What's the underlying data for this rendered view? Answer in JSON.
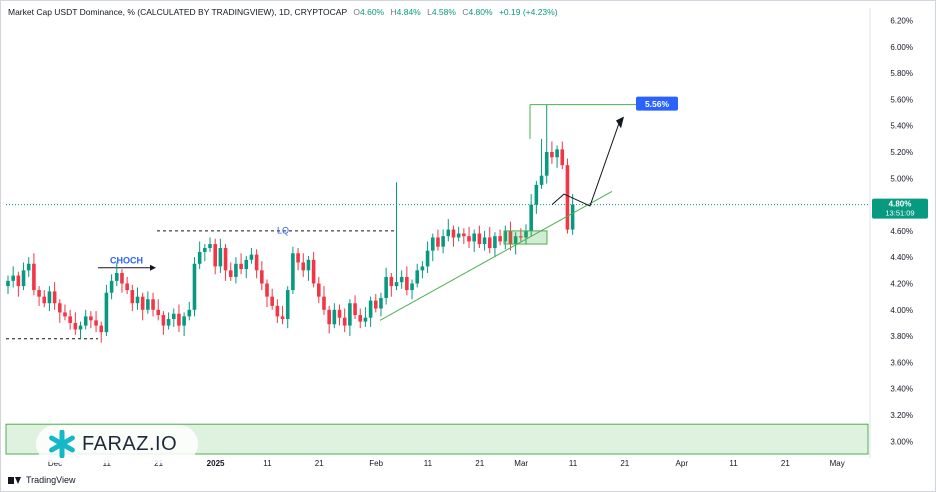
{
  "header": {
    "title": "Market Cap USDT Dominance, % (CALCULATED BY TRADINGVIEW), 1D, CRYPTOCAP",
    "open_label": "O",
    "open": "4.60%",
    "high_label": "H",
    "high": "4.84%",
    "low_label": "L",
    "low": "4.58%",
    "close_label": "C",
    "close": "4.80%",
    "change": "+0.19 (+4.23%)"
  },
  "price_tag": {
    "value": "4.80%",
    "countdown": "13:51:09"
  },
  "target_label": "5.56%",
  "annotations": {
    "choch": "CHOCH",
    "lq": "LQ"
  },
  "watermark": "FARAZ.IO",
  "footer_brand": "TradingView",
  "colors": {
    "up": "#089981",
    "down": "#f23645",
    "accent": "#2962ff",
    "trend": "#4caf50"
  },
  "chart_data": {
    "type": "candlestick",
    "y_axis": {
      "min": 2.94,
      "max": 6.25,
      "step": 0.2,
      "ticks": [
        "6.20%",
        "6.00%",
        "5.80%",
        "5.60%",
        "5.40%",
        "5.20%",
        "5.00%",
        "4.80%",
        "4.60%",
        "4.40%",
        "4.20%",
        "4.00%",
        "3.80%",
        "3.60%",
        "3.40%",
        "3.20%",
        "3.00%"
      ]
    },
    "x_axis": {
      "labels": [
        {
          "text": "Dec",
          "t": 0
        },
        {
          "text": "11",
          "t": 10
        },
        {
          "text": "21",
          "t": 20
        },
        {
          "text": "2025",
          "t": 31
        },
        {
          "text": "11",
          "t": 41
        },
        {
          "text": "21",
          "t": 51
        },
        {
          "text": "Feb",
          "t": 62
        },
        {
          "text": "11",
          "t": 72
        },
        {
          "text": "21",
          "t": 82
        },
        {
          "text": "Mar",
          "t": 90
        },
        {
          "text": "11",
          "t": 100
        },
        {
          "text": "21",
          "t": 110
        },
        {
          "text": "Apr",
          "t": 121
        },
        {
          "text": "11",
          "t": 131
        },
        {
          "text": "21",
          "t": 141
        },
        {
          "text": "May",
          "t": 151
        }
      ],
      "bold": [
        "2025"
      ]
    },
    "closes": [
      4.22,
      4.26,
      4.18,
      4.3,
      4.35,
      4.15,
      4.1,
      4.05,
      4.14,
      4.05,
      3.98,
      3.95,
      3.9,
      3.85,
      3.88,
      3.95,
      3.92,
      3.88,
      3.83,
      4.13,
      4.22,
      4.28,
      4.2,
      4.15,
      4.05,
      4.1,
      4.0,
      4.08,
      4.0,
      3.96,
      3.88,
      3.93,
      3.97,
      3.88,
      3.95,
      4.0,
      4.35,
      4.44,
      4.47,
      4.5,
      4.33,
      4.47,
      4.3,
      4.25,
      4.35,
      4.31,
      4.38,
      4.42,
      4.3,
      4.2,
      4.1,
      4.03,
      3.95,
      3.93,
      4.15,
      4.43,
      4.36,
      4.3,
      4.38,
      4.2,
      4.1,
      4.0,
      3.89,
      4.0,
      3.94,
      3.88,
      4.05,
      3.96,
      3.91,
      3.94,
      4.07,
      4.01,
      4.09,
      4.25,
      4.18,
      4.21,
      4.25,
      4.15,
      4.2,
      4.3,
      4.33,
      4.45,
      4.55,
      4.48,
      4.56,
      4.61,
      4.55,
      4.58,
      4.56,
      4.52,
      4.58,
      4.5,
      4.55,
      4.47,
      4.56,
      4.52,
      4.6,
      4.5,
      4.56,
      4.55,
      4.6,
      4.8,
      4.95,
      5.02,
      5.2,
      5.16,
      5.22,
      5.1,
      4.61,
      4.8
    ],
    "last_close": 4.8,
    "target": 5.56
  }
}
